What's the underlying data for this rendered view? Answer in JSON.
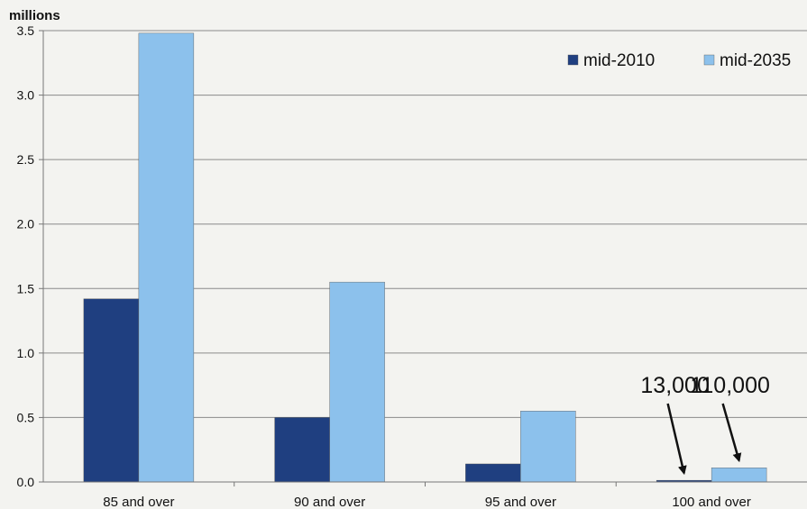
{
  "chart_data": {
    "type": "bar",
    "y_unit_label": "millions",
    "categories": [
      "85 and over",
      "90 and over",
      "95 and over",
      "100 and over"
    ],
    "series": [
      {
        "name": "mid-2010",
        "values": [
          1.42,
          0.5,
          0.14,
          0.013
        ],
        "color": "#1f3f80"
      },
      {
        "name": "mid-2035",
        "values": [
          3.48,
          1.55,
          0.55,
          0.11
        ],
        "color": "#8cc1ec"
      }
    ],
    "ylim": [
      0,
      3.5
    ],
    "yticks": [
      "0.0",
      "0.5",
      "1.0",
      "1.5",
      "2.0",
      "2.5",
      "3.0",
      "3.5"
    ],
    "grid": true,
    "legend_position": "top-right",
    "annotations": [
      {
        "text": "13,000",
        "category": "100 and over",
        "series": "mid-2010"
      },
      {
        "text": "110,000",
        "category": "100 and over",
        "series": "mid-2035"
      }
    ]
  }
}
